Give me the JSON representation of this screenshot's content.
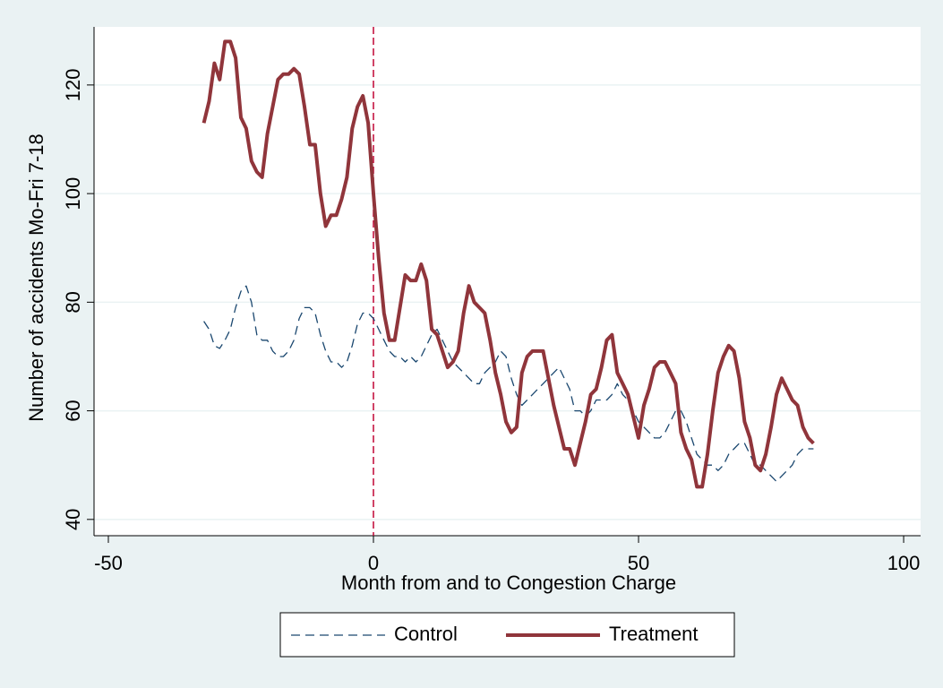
{
  "chart_data": {
    "type": "line",
    "x_label": "Month from and to Congestion Charge",
    "y_label": "Number of accidents Mo-Fri 7-18",
    "x": [
      -32,
      -31,
      -30,
      -29,
      -28,
      -27,
      -26,
      -25,
      -24,
      -23,
      -22,
      -21,
      -20,
      -19,
      -18,
      -17,
      -16,
      -15,
      -14,
      -13,
      -12,
      -11,
      -10,
      -9,
      -8,
      -7,
      -6,
      -5,
      -4,
      -3,
      -2,
      -1,
      0,
      1,
      2,
      3,
      4,
      5,
      6,
      7,
      8,
      9,
      10,
      11,
      12,
      13,
      14,
      15,
      16,
      17,
      18,
      19,
      20,
      21,
      22,
      23,
      24,
      25,
      26,
      27,
      28,
      29,
      30,
      31,
      32,
      33,
      34,
      35,
      36,
      37,
      38,
      39,
      40,
      41,
      42,
      43,
      44,
      45,
      46,
      47,
      48,
      49,
      50,
      51,
      52,
      53,
      54,
      55,
      56,
      57,
      58,
      59,
      60,
      61,
      62,
      63,
      64,
      65,
      66,
      67,
      68,
      69,
      70,
      71,
      72,
      73,
      74,
      75,
      76,
      77,
      78,
      79,
      80,
      81,
      82,
      83
    ],
    "series": [
      {
        "name": "Control",
        "color": "#1a476f",
        "dash": true,
        "values": [
          76.5,
          75,
          72,
          71.5,
          73,
          75,
          79,
          82,
          83,
          80,
          74,
          73,
          73,
          71,
          70,
          70,
          71,
          73,
          77,
          79,
          79,
          78,
          74,
          71,
          69,
          69,
          68,
          69,
          72,
          76,
          78,
          78,
          77,
          75,
          73,
          71,
          70,
          70,
          69,
          70,
          69,
          70,
          72,
          74,
          75,
          73,
          71,
          69,
          68,
          67,
          66,
          65,
          65,
          67,
          68,
          69,
          71,
          70,
          66,
          63,
          61,
          62,
          63,
          64,
          65,
          66,
          67,
          68,
          66,
          64,
          60,
          60,
          59,
          60,
          62,
          62,
          62,
          63,
          65,
          63,
          62,
          60,
          58,
          57,
          56,
          55,
          55,
          56,
          58,
          60,
          60,
          58,
          55,
          52,
          51,
          50,
          50,
          49,
          50,
          52,
          53,
          54,
          54,
          52,
          50,
          50,
          49,
          48,
          47,
          48,
          49,
          50,
          52,
          53,
          53,
          53
        ]
      },
      {
        "name": "Treatment",
        "color": "#90353b",
        "dash": false,
        "values": [
          113,
          117,
          124,
          121,
          128,
          128,
          125,
          114,
          112,
          106,
          104,
          103,
          111,
          116,
          121,
          122,
          122,
          123,
          122,
          116,
          109,
          109,
          100,
          94,
          96,
          96,
          99,
          103,
          112,
          116,
          118,
          113,
          100,
          88,
          78,
          73,
          73,
          79,
          85,
          84,
          84,
          87,
          84,
          75,
          74,
          71,
          68,
          69,
          71,
          78,
          83,
          80,
          79,
          78,
          73,
          67,
          63,
          58,
          56,
          57,
          67,
          70,
          71,
          71,
          71,
          66,
          61,
          57,
          53,
          53,
          50,
          54,
          58,
          63,
          64,
          68,
          73,
          74,
          67,
          65,
          63,
          59,
          55,
          61,
          64,
          68,
          69,
          69,
          67,
          65,
          56,
          53,
          51,
          46,
          46,
          52,
          60,
          67,
          70,
          72,
          71,
          66,
          58,
          55,
          50,
          49,
          52,
          57,
          63,
          66,
          64,
          62,
          61,
          57,
          55,
          54
        ]
      }
    ],
    "xlim": [
      -52.7,
      103.2
    ],
    "xticks": [
      -50,
      0,
      50,
      100
    ],
    "ylim": [
      37,
      130.7
    ],
    "yticks": [
      40,
      60,
      80,
      100,
      120
    ],
    "grid": true,
    "vline": 0,
    "vline_color": "#c10534",
    "legend": "bottom"
  }
}
